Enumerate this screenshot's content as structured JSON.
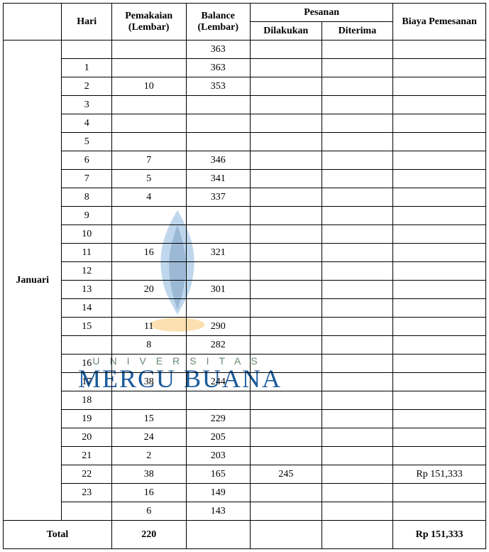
{
  "headers": {
    "hari": "Hari",
    "pemakaian": "Pemakaian (Lembar)",
    "balance": "Balance (Lembar)",
    "pesanan": "Pesanan",
    "dilakukan": "Dilakukan",
    "diterima": "Diterima",
    "biaya": "Biaya Pemesanan"
  },
  "month": "Januari",
  "rows": [
    {
      "hari": "",
      "pemakaian": "",
      "balance": "363",
      "dilakukan": "",
      "diterima": "",
      "biaya": ""
    },
    {
      "hari": "1",
      "pemakaian": "",
      "balance": "363",
      "dilakukan": "",
      "diterima": "",
      "biaya": ""
    },
    {
      "hari": "2",
      "pemakaian": "10",
      "balance": "353",
      "dilakukan": "",
      "diterima": "",
      "biaya": ""
    },
    {
      "hari": "3",
      "pemakaian": "",
      "balance": "",
      "dilakukan": "",
      "diterima": "",
      "biaya": ""
    },
    {
      "hari": "4",
      "pemakaian": "",
      "balance": "",
      "dilakukan": "",
      "diterima": "",
      "biaya": ""
    },
    {
      "hari": "5",
      "pemakaian": "",
      "balance": "",
      "dilakukan": "",
      "diterima": "",
      "biaya": ""
    },
    {
      "hari": "6",
      "pemakaian": "7",
      "balance": "346",
      "dilakukan": "",
      "diterima": "",
      "biaya": ""
    },
    {
      "hari": "7",
      "pemakaian": "5",
      "balance": "341",
      "dilakukan": "",
      "diterima": "",
      "biaya": ""
    },
    {
      "hari": "8",
      "pemakaian": "4",
      "balance": "337",
      "dilakukan": "",
      "diterima": "",
      "biaya": ""
    },
    {
      "hari": "9",
      "pemakaian": "",
      "balance": "",
      "dilakukan": "",
      "diterima": "",
      "biaya": ""
    },
    {
      "hari": "10",
      "pemakaian": "",
      "balance": "",
      "dilakukan": "",
      "diterima": "",
      "biaya": ""
    },
    {
      "hari": "11",
      "pemakaian": "16",
      "balance": "321",
      "dilakukan": "",
      "diterima": "",
      "biaya": ""
    },
    {
      "hari": "12",
      "pemakaian": "",
      "balance": "",
      "dilakukan": "",
      "diterima": "",
      "biaya": ""
    },
    {
      "hari": "13",
      "pemakaian": "20",
      "balance": "301",
      "dilakukan": "",
      "diterima": "",
      "biaya": ""
    },
    {
      "hari": "14",
      "pemakaian": "",
      "balance": "",
      "dilakukan": "",
      "diterima": "",
      "biaya": ""
    },
    {
      "hari": "15",
      "pemakaian": "11",
      "balance": "290",
      "dilakukan": "",
      "diterima": "",
      "biaya": ""
    },
    {
      "hari": "",
      "pemakaian": "8",
      "balance": "282",
      "dilakukan": "",
      "diterima": "",
      "biaya": ""
    },
    {
      "hari": "16",
      "pemakaian": "",
      "balance": "",
      "dilakukan": "",
      "diterima": "",
      "biaya": ""
    },
    {
      "hari": "17",
      "pemakaian": "38",
      "balance": "244",
      "dilakukan": "",
      "diterima": "",
      "biaya": ""
    },
    {
      "hari": "18",
      "pemakaian": "",
      "balance": "",
      "dilakukan": "",
      "diterima": "",
      "biaya": ""
    },
    {
      "hari": "19",
      "pemakaian": "15",
      "balance": "229",
      "dilakukan": "",
      "diterima": "",
      "biaya": ""
    },
    {
      "hari": "20",
      "pemakaian": "24",
      "balance": "205",
      "dilakukan": "",
      "diterima": "",
      "biaya": ""
    },
    {
      "hari": "21",
      "pemakaian": "2",
      "balance": "203",
      "dilakukan": "",
      "diterima": "",
      "biaya": ""
    },
    {
      "hari": "22",
      "pemakaian": "38",
      "balance": "165",
      "dilakukan": "245",
      "diterima": "",
      "biaya": "Rp  151,333"
    },
    {
      "hari": "23",
      "pemakaian": "16",
      "balance": "149",
      "dilakukan": "",
      "diterima": "",
      "biaya": ""
    },
    {
      "hari": "",
      "pemakaian": "6",
      "balance": "143",
      "dilakukan": "",
      "diterima": "",
      "biaya": ""
    }
  ],
  "total": {
    "label": "Total",
    "pemakaian": "220",
    "balance": "",
    "dilakukan": "",
    "diterima": "",
    "biaya": "Rp 151,333"
  },
  "watermark": {
    "univ": "UNIVERSITAS",
    "mercu": "MERCU BUANA",
    "flame_color": "#2a7ac0",
    "leaf_color": "#f5a623"
  }
}
